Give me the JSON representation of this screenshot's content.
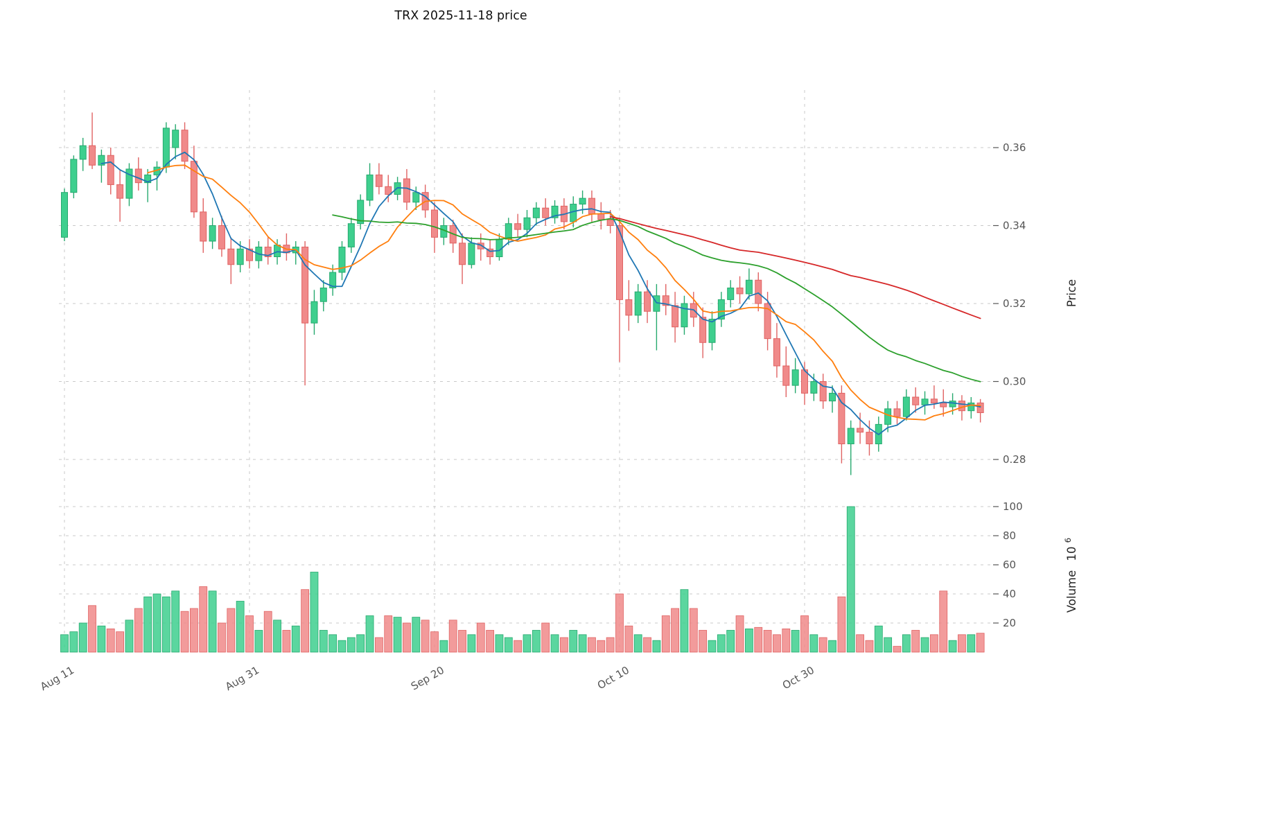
{
  "chart_data": {
    "type": "candlestick",
    "title": "TRX  2025-11-18  price",
    "ylabel": "Price",
    "ylabel2": "Volume",
    "ylabel2_unit_base": "10",
    "ylabel2_unit_exp": "6",
    "price_ticks": [
      0.36,
      0.34,
      0.32,
      0.3,
      0.28
    ],
    "volume_ticks": [
      100,
      80,
      60,
      40,
      20
    ],
    "x_ticks": [
      {
        "index": 0,
        "label": "Aug 11"
      },
      {
        "index": 20,
        "label": "Aug 31"
      },
      {
        "index": 40,
        "label": "Sep 20"
      },
      {
        "index": 60,
        "label": "Oct 10"
      },
      {
        "index": 80,
        "label": "Oct 30"
      }
    ],
    "x_range": [
      "Aug 11",
      "Nov 18"
    ],
    "price_axis_range": [
      0.275,
      0.375
    ],
    "volume_axis_range_millions": [
      0,
      115
    ],
    "grid": "dashed",
    "legend": "none",
    "moving_averages": [
      {
        "name": "ma-fast",
        "window": 5,
        "color": "#1f77b4"
      },
      {
        "name": "ma-medium",
        "window": 10,
        "color": "#ff7f0e"
      },
      {
        "name": "ma-slow",
        "window": 30,
        "color": "#2ca02c"
      },
      {
        "name": "ma-long",
        "window": 60,
        "color": "#d62728"
      }
    ],
    "colors": {
      "up": "#3ecf8e",
      "up_edge": "#26a96e",
      "down": "#f08a8a",
      "down_edge": "#e06363",
      "grid": "#c9c9c9",
      "tick_text": "#555555",
      "axis_label": "#262626",
      "title": "#111111"
    },
    "columns": [
      "date",
      "open",
      "high",
      "low",
      "close",
      "volume_millions"
    ],
    "candles": [
      [
        "Aug 11",
        0.337,
        0.3495,
        0.336,
        0.3485,
        12
      ],
      [
        "Aug 12",
        0.3485,
        0.358,
        0.347,
        0.357,
        14
      ],
      [
        "Aug 13",
        0.357,
        0.3625,
        0.354,
        0.3605,
        20
      ],
      [
        "Aug 14",
        0.3605,
        0.369,
        0.3545,
        0.3555,
        32
      ],
      [
        "Aug 15",
        0.3555,
        0.3595,
        0.351,
        0.358,
        18
      ],
      [
        "Aug 16",
        0.358,
        0.36,
        0.348,
        0.3505,
        16
      ],
      [
        "Aug 17",
        0.3505,
        0.3545,
        0.341,
        0.347,
        14
      ],
      [
        "Aug 18",
        0.347,
        0.356,
        0.345,
        0.3545,
        22
      ],
      [
        "Aug 19",
        0.3545,
        0.3575,
        0.349,
        0.351,
        30
      ],
      [
        "Aug 20",
        0.351,
        0.3545,
        0.346,
        0.353,
        38
      ],
      [
        "Aug 21",
        0.353,
        0.3565,
        0.349,
        0.355,
        40
      ],
      [
        "Aug 22",
        0.355,
        0.3665,
        0.3535,
        0.365,
        38
      ],
      [
        "Aug 23",
        0.36,
        0.366,
        0.357,
        0.3645,
        42
      ],
      [
        "Aug 24",
        0.3645,
        0.3665,
        0.3545,
        0.3565,
        28
      ],
      [
        "Aug 25",
        0.3565,
        0.3605,
        0.342,
        0.3435,
        30
      ],
      [
        "Aug 26",
        0.3435,
        0.347,
        0.333,
        0.336,
        45
      ],
      [
        "Aug 27",
        0.336,
        0.342,
        0.334,
        0.34,
        42
      ],
      [
        "Aug 28",
        0.34,
        0.3425,
        0.332,
        0.334,
        20
      ],
      [
        "Aug 29",
        0.334,
        0.337,
        0.325,
        0.33,
        30
      ],
      [
        "Aug 30",
        0.33,
        0.336,
        0.328,
        0.334,
        35
      ],
      [
        "Aug 31",
        0.334,
        0.3365,
        0.329,
        0.331,
        25
      ],
      [
        "Sep 1",
        0.331,
        0.336,
        0.329,
        0.3345,
        15
      ],
      [
        "Sep 2",
        0.3345,
        0.337,
        0.33,
        0.332,
        28
      ],
      [
        "Sep 3",
        0.332,
        0.3365,
        0.33,
        0.335,
        22
      ],
      [
        "Sep 4",
        0.335,
        0.338,
        0.331,
        0.333,
        15
      ],
      [
        "Sep 5",
        0.333,
        0.336,
        0.33,
        0.3345,
        18
      ],
      [
        "Sep 6",
        0.3345,
        0.336,
        0.299,
        0.315,
        43
      ],
      [
        "Sep 7",
        0.315,
        0.3235,
        0.312,
        0.3205,
        55
      ],
      [
        "Sep 8",
        0.3205,
        0.326,
        0.318,
        0.324,
        15
      ],
      [
        "Sep 9",
        0.324,
        0.33,
        0.322,
        0.328,
        12
      ],
      [
        "Sep 10",
        0.328,
        0.336,
        0.326,
        0.3345,
        8
      ],
      [
        "Sep 11",
        0.3345,
        0.342,
        0.333,
        0.3405,
        10
      ],
      [
        "Sep 12",
        0.3405,
        0.348,
        0.339,
        0.3465,
        12
      ],
      [
        "Sep 13",
        0.3465,
        0.356,
        0.345,
        0.353,
        25
      ],
      [
        "Sep 14",
        0.353,
        0.356,
        0.348,
        0.35,
        10
      ],
      [
        "Sep 15",
        0.35,
        0.353,
        0.346,
        0.348,
        25
      ],
      [
        "Sep 16",
        0.348,
        0.3525,
        0.3465,
        0.351,
        24
      ],
      [
        "Sep 17",
        0.352,
        0.3545,
        0.344,
        0.346,
        20
      ],
      [
        "Sep 18",
        0.346,
        0.35,
        0.344,
        0.3485,
        24
      ],
      [
        "Sep 19",
        0.3485,
        0.3505,
        0.342,
        0.344,
        22
      ],
      [
        "Sep 20",
        0.344,
        0.346,
        0.333,
        0.337,
        14
      ],
      [
        "Sep 21",
        0.337,
        0.342,
        0.335,
        0.34,
        8
      ],
      [
        "Sep 22",
        0.34,
        0.3415,
        0.333,
        0.3355,
        22
      ],
      [
        "Sep 23",
        0.3355,
        0.338,
        0.325,
        0.33,
        15
      ],
      [
        "Sep 24",
        0.33,
        0.337,
        0.329,
        0.3355,
        12
      ],
      [
        "Sep 25",
        0.3355,
        0.338,
        0.331,
        0.334,
        20
      ],
      [
        "Sep 26",
        0.334,
        0.3365,
        0.33,
        0.332,
        15
      ],
      [
        "Sep 27",
        0.332,
        0.338,
        0.331,
        0.3365,
        12
      ],
      [
        "Sep 28",
        0.3365,
        0.342,
        0.335,
        0.3405,
        10
      ],
      [
        "Sep 29",
        0.3405,
        0.343,
        0.337,
        0.339,
        8
      ],
      [
        "Sep 30",
        0.339,
        0.344,
        0.337,
        0.342,
        12
      ],
      [
        "Oct 1",
        0.342,
        0.346,
        0.34,
        0.3445,
        15
      ],
      [
        "Oct 2",
        0.3445,
        0.347,
        0.34,
        0.342,
        20
      ],
      [
        "Oct 3",
        0.342,
        0.3465,
        0.3405,
        0.345,
        12
      ],
      [
        "Oct 4",
        0.345,
        0.347,
        0.339,
        0.341,
        10
      ],
      [
        "Oct 5",
        0.341,
        0.3475,
        0.3395,
        0.3455,
        15
      ],
      [
        "Oct 6",
        0.3455,
        0.349,
        0.343,
        0.347,
        12
      ],
      [
        "Oct 7",
        0.347,
        0.349,
        0.341,
        0.343,
        10
      ],
      [
        "Oct 8",
        0.343,
        0.346,
        0.339,
        0.3415,
        8
      ],
      [
        "Oct 9",
        0.3415,
        0.344,
        0.338,
        0.34,
        10
      ],
      [
        "Oct 10",
        0.34,
        0.342,
        0.305,
        0.321,
        40
      ],
      [
        "Oct 11",
        0.321,
        0.326,
        0.313,
        0.317,
        18
      ],
      [
        "Oct 12",
        0.317,
        0.325,
        0.315,
        0.323,
        12
      ],
      [
        "Oct 13",
        0.323,
        0.326,
        0.315,
        0.318,
        10
      ],
      [
        "Oct 14",
        0.318,
        0.325,
        0.308,
        0.322,
        8
      ],
      [
        "Oct 15",
        0.322,
        0.325,
        0.317,
        0.3195,
        25
      ],
      [
        "Oct 16",
        0.3195,
        0.323,
        0.31,
        0.314,
        30
      ],
      [
        "Oct 17",
        0.314,
        0.322,
        0.312,
        0.32,
        43
      ],
      [
        "Oct 18",
        0.32,
        0.323,
        0.314,
        0.3165,
        30
      ],
      [
        "Oct 19",
        0.3165,
        0.319,
        0.306,
        0.31,
        15
      ],
      [
        "Oct 20",
        0.31,
        0.318,
        0.308,
        0.316,
        8
      ],
      [
        "Oct 21",
        0.316,
        0.323,
        0.314,
        0.321,
        12
      ],
      [
        "Oct 22",
        0.321,
        0.326,
        0.319,
        0.324,
        15
      ],
      [
        "Oct 23",
        0.324,
        0.327,
        0.32,
        0.3225,
        25
      ],
      [
        "Oct 24",
        0.3225,
        0.329,
        0.321,
        0.326,
        16
      ],
      [
        "Oct 25",
        0.326,
        0.328,
        0.318,
        0.32,
        17
      ],
      [
        "Oct 26",
        0.32,
        0.323,
        0.308,
        0.311,
        15
      ],
      [
        "Oct 27",
        0.311,
        0.315,
        0.301,
        0.304,
        12
      ],
      [
        "Oct 28",
        0.304,
        0.309,
        0.296,
        0.299,
        16
      ],
      [
        "Oct 29",
        0.299,
        0.306,
        0.297,
        0.303,
        15
      ],
      [
        "Oct 30",
        0.303,
        0.305,
        0.294,
        0.297,
        25
      ],
      [
        "Oct 31",
        0.297,
        0.302,
        0.295,
        0.3,
        12
      ],
      [
        "Nov 1",
        0.3,
        0.302,
        0.293,
        0.295,
        10
      ],
      [
        "Nov 2",
        0.295,
        0.299,
        0.292,
        0.297,
        8
      ],
      [
        "Nov 3",
        0.297,
        0.299,
        0.279,
        0.284,
        38
      ],
      [
        "Nov 4",
        0.284,
        0.29,
        0.276,
        0.288,
        100
      ],
      [
        "Nov 5",
        0.288,
        0.292,
        0.284,
        0.287,
        12
      ],
      [
        "Nov 6",
        0.287,
        0.29,
        0.281,
        0.284,
        8
      ],
      [
        "Nov 7",
        0.284,
        0.291,
        0.282,
        0.289,
        18
      ],
      [
        "Nov 8",
        0.289,
        0.295,
        0.287,
        0.293,
        10
      ],
      [
        "Nov 9",
        0.293,
        0.295,
        0.289,
        0.291,
        4
      ],
      [
        "Nov 10",
        0.291,
        0.298,
        0.29,
        0.296,
        12
      ],
      [
        "Nov 11",
        0.296,
        0.2985,
        0.292,
        0.294,
        15
      ],
      [
        "Nov 12",
        0.294,
        0.2975,
        0.2915,
        0.2955,
        10
      ],
      [
        "Nov 13",
        0.2955,
        0.299,
        0.293,
        0.2945,
        12
      ],
      [
        "Nov 14",
        0.2945,
        0.298,
        0.291,
        0.2935,
        42
      ],
      [
        "Nov 15",
        0.2935,
        0.297,
        0.2915,
        0.295,
        8
      ],
      [
        "Nov 16",
        0.295,
        0.2965,
        0.29,
        0.2925,
        12
      ],
      [
        "Nov 17",
        0.2925,
        0.296,
        0.2905,
        0.2945,
        12
      ],
      [
        "Nov 18",
        0.2945,
        0.2955,
        0.2895,
        0.292,
        13
      ]
    ]
  }
}
